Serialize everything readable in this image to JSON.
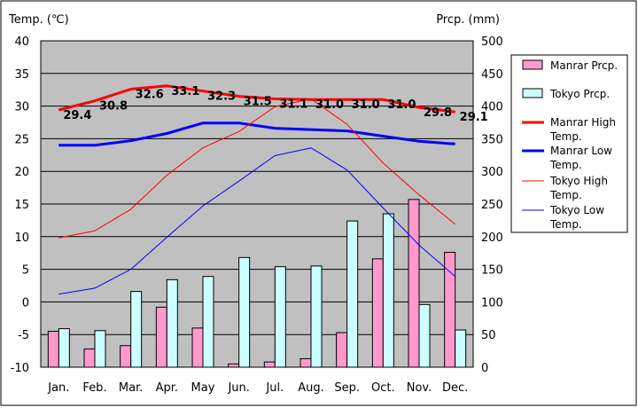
{
  "chart_data": {
    "type": "bar",
    "categories": [
      "Jan.",
      "Feb.",
      "Mar.",
      "Apr.",
      "May",
      "Jun.",
      "Jul.",
      "Aug.",
      "Sep.",
      "Oct.",
      "Nov.",
      "Dec."
    ],
    "ylabel_left": "Temp. (℃)",
    "ylabel_right": "Prcp. (mm)",
    "ylim_left": [
      -10,
      40
    ],
    "ylim_right": [
      0,
      500
    ],
    "yticks_left": [
      "40",
      "35",
      "30",
      "25",
      "20",
      "15",
      "10",
      "5",
      "0",
      "-5",
      "-10"
    ],
    "yticks_right": [
      "500",
      "450",
      "400",
      "350",
      "300",
      "250",
      "200",
      "150",
      "100",
      "50",
      "0"
    ],
    "grid": true,
    "legend_position": "right",
    "bar_series": [
      {
        "name": "Manrar Prcp.",
        "color": "#ff99cc",
        "values": [
          55,
          28,
          33,
          92,
          60,
          5,
          8,
          13,
          53,
          166,
          257,
          176
        ]
      },
      {
        "name": "Tokyo Prcp.",
        "color": "#ccffff",
        "values": [
          59,
          56,
          116,
          134,
          139,
          168,
          154,
          155,
          224,
          235,
          96,
          57
        ]
      }
    ],
    "line_series": [
      {
        "name": "Manrar High Temp.",
        "color": "#ff0000",
        "width": 3,
        "values": [
          29.4,
          30.8,
          32.6,
          33.1,
          32.3,
          31.5,
          31.1,
          31.0,
          31.0,
          31.0,
          29.8,
          29.1
        ],
        "labels": [
          "29.4",
          "30.8",
          "32.6",
          "33.1",
          "32.3",
          "31.5",
          "31.1",
          "31.0",
          "31.0",
          "31.0",
          "29.8",
          "29.1"
        ]
      },
      {
        "name": "Manrar Low Temp.",
        "color": "#0000ff",
        "width": 3,
        "values": [
          24.0,
          24.0,
          24.7,
          25.8,
          27.4,
          27.4,
          26.6,
          26.4,
          26.2,
          25.4,
          24.6,
          24.2
        ]
      },
      {
        "name": "Tokyo High Temp.",
        "color": "#ff0000",
        "width": 1,
        "values": [
          9.8,
          10.9,
          14.2,
          19.4,
          23.6,
          26.1,
          29.9,
          31.1,
          27.2,
          21.3,
          16.4,
          11.9
        ]
      },
      {
        "name": "Tokyo Low Temp.",
        "color": "#0000ff",
        "width": 1,
        "values": [
          1.2,
          2.1,
          5.0,
          9.9,
          14.7,
          18.5,
          22.4,
          23.6,
          20.2,
          14.4,
          8.7,
          3.9
        ]
      }
    ],
    "legend": {
      "items": [
        {
          "kind": "box",
          "color": "#ff99cc",
          "label": "Manrar Prcp."
        },
        {
          "kind": "box",
          "color": "#ccffff",
          "label": "Tokyo Prcp."
        },
        {
          "kind": "line",
          "color": "#ff0000",
          "width": 3,
          "label1": "Manrar High",
          "label2": "Temp."
        },
        {
          "kind": "line",
          "color": "#0000ff",
          "width": 3,
          "label1": "Manrar Low",
          "label2": "Temp."
        },
        {
          "kind": "line",
          "color": "#ff0000",
          "width": 1,
          "label1": "Tokyo High",
          "label2": "Temp."
        },
        {
          "kind": "line",
          "color": "#0000ff",
          "width": 1,
          "label1": "Tokyo Low",
          "label2": "Temp."
        }
      ]
    }
  }
}
